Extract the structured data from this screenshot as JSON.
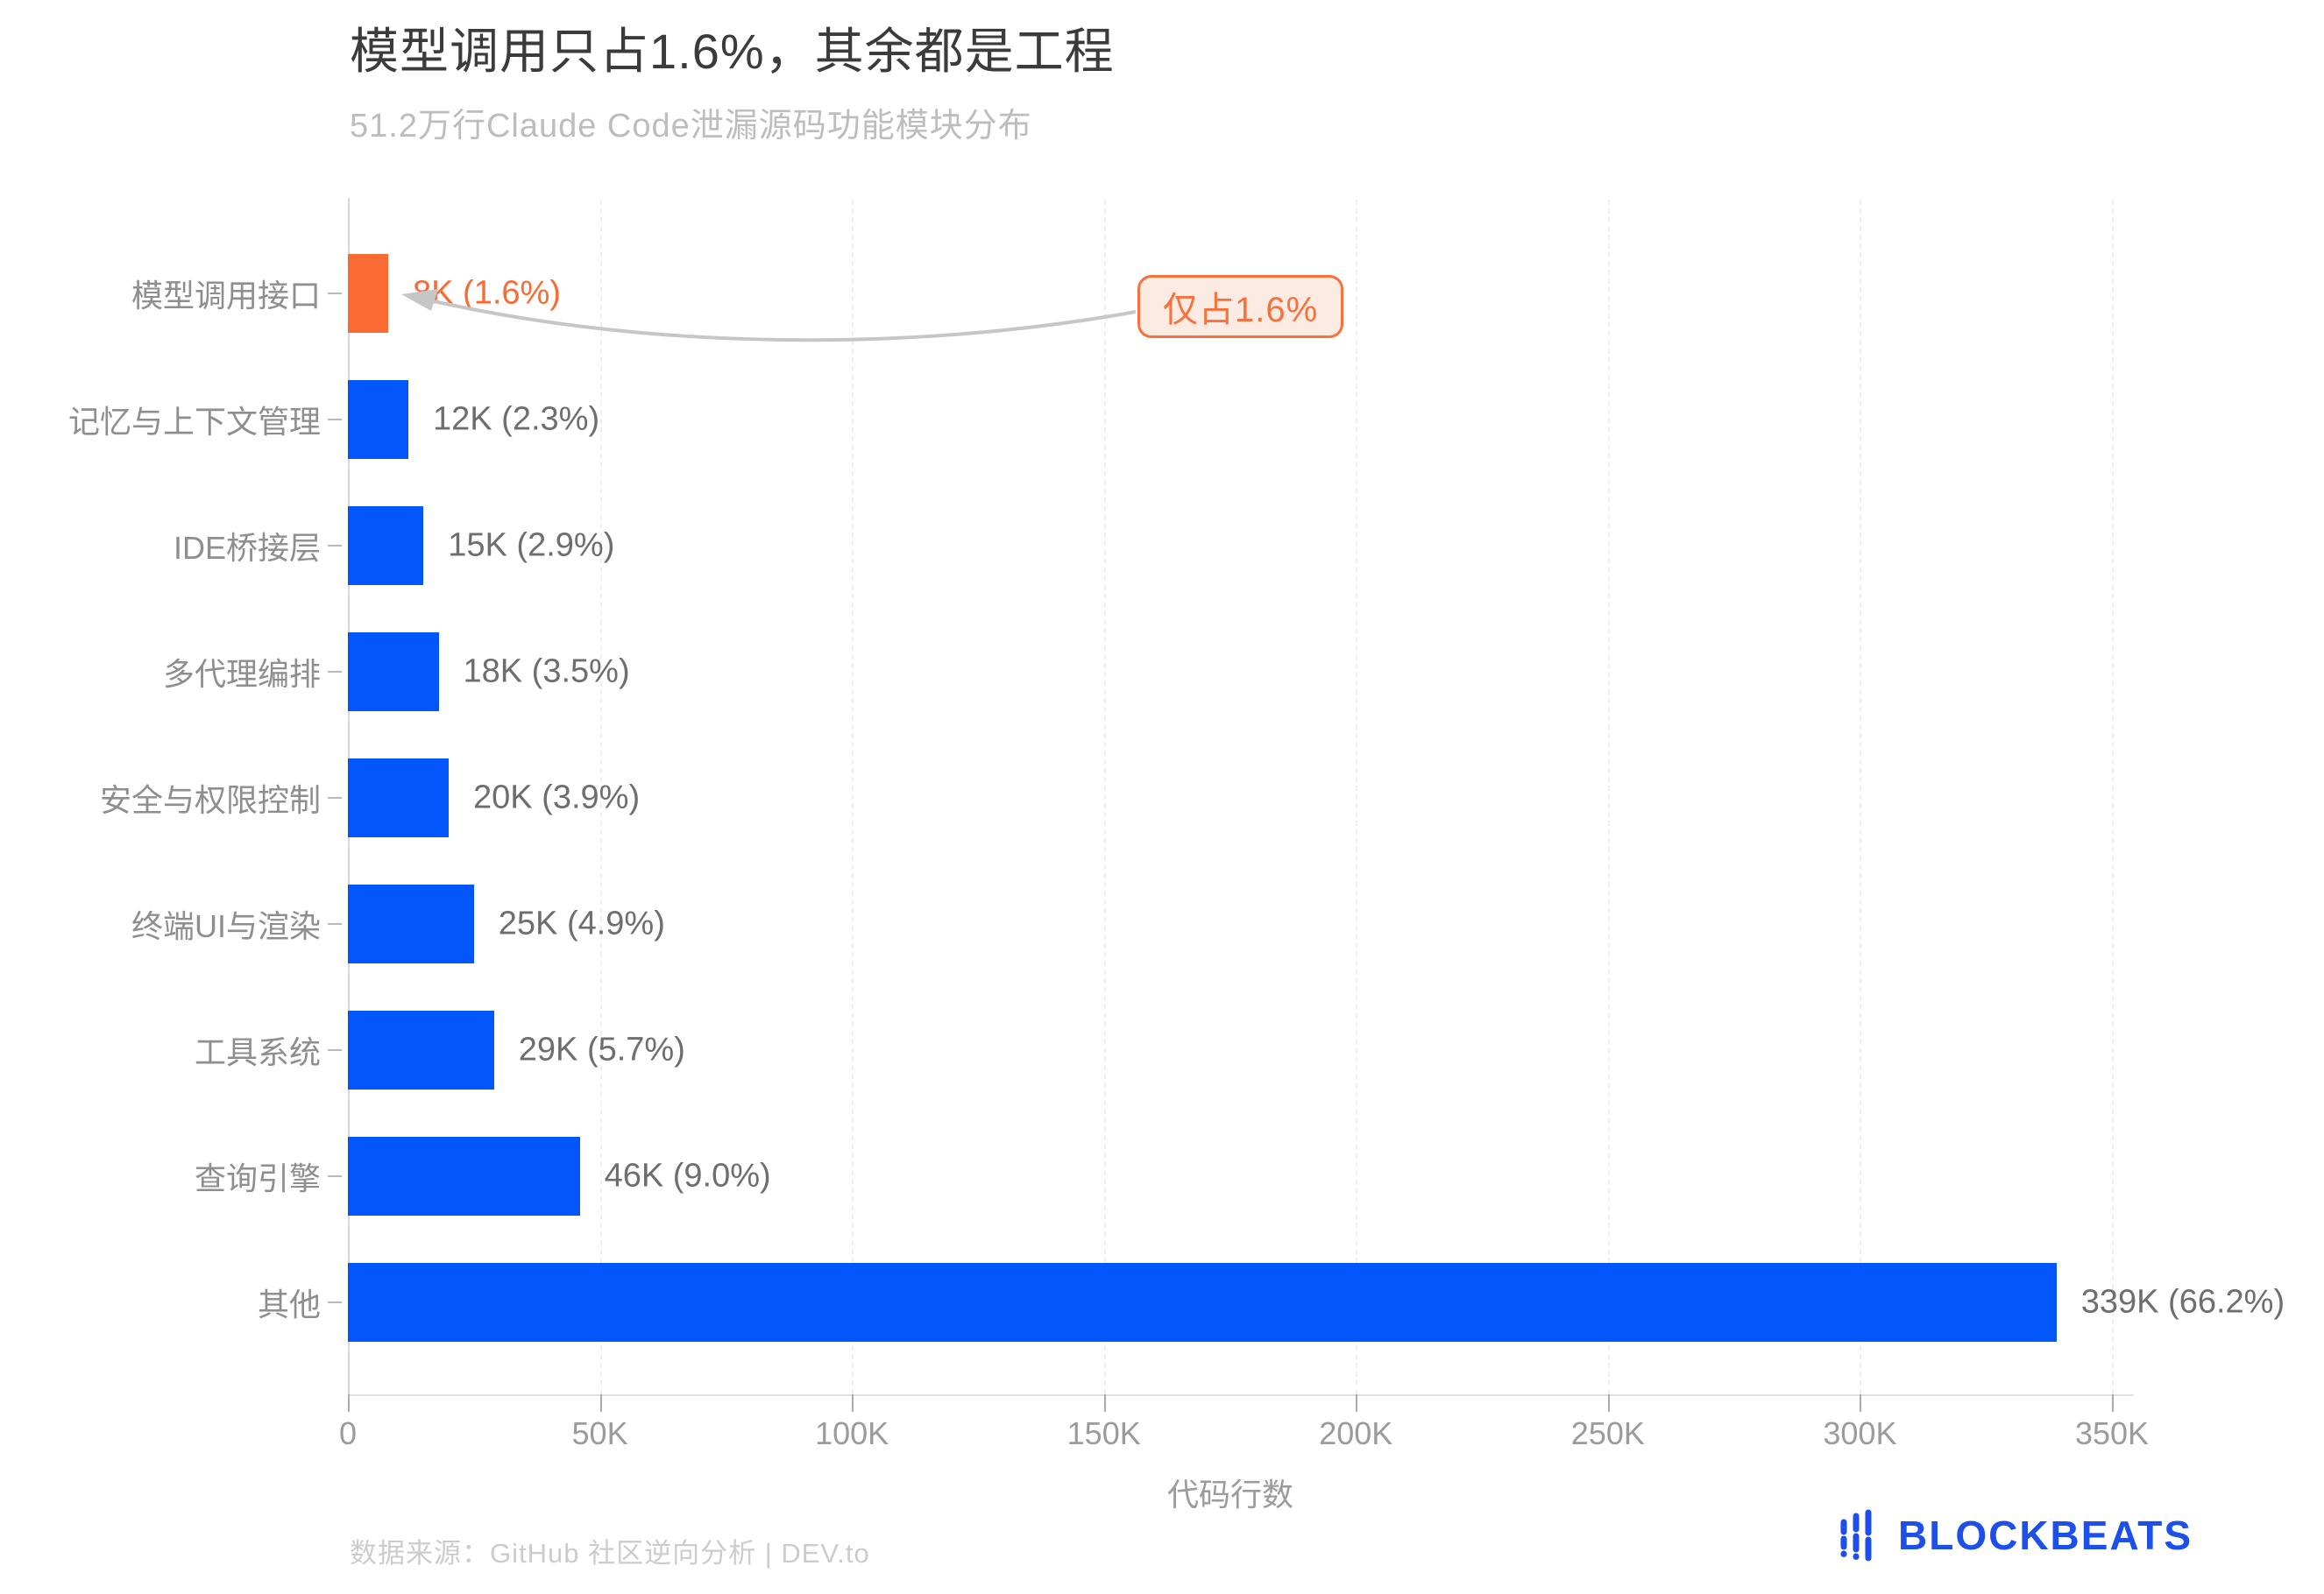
{
  "title": "模型调用只占1.6%，其余都是工程",
  "subtitle": "51.2万行Claude Code泄漏源码功能模块分布",
  "annotation": {
    "label": "仅占1.6%"
  },
  "footer": {
    "source": "数据来源：GitHub 社区逆向分析 | DEV.to",
    "logo_text": "BLOCKBEATS"
  },
  "colors": {
    "bar_blue": "#0356fa",
    "bar_orange": "#f96b32",
    "annotation_orange": "#f8703a",
    "annotation_bg": "#fcebe2",
    "arrow_gray": "#c6c6c6",
    "logo_blue": "#1d4fe9",
    "label_gray": "#6e6e6e",
    "axis_gray": "#9b9b9b"
  },
  "chart_data": {
    "type": "bar",
    "orientation": "horizontal",
    "title": "模型调用只占1.6%，其余都是工程",
    "subtitle": "51.2万行Claude Code泄漏源码功能模块分布",
    "xlabel": "代码行数",
    "ylabel": "",
    "xlim": [
      0,
      350000
    ],
    "grid": true,
    "categories": [
      "模型调用接口",
      "记忆与上下文管理",
      "IDE桥接层",
      "多代理编排",
      "安全与权限控制",
      "终端UI与渲染",
      "工具系统",
      "查询引擎",
      "其他"
    ],
    "values": [
      8000,
      12000,
      15000,
      18000,
      20000,
      25000,
      29000,
      46000,
      339000
    ],
    "data_labels": [
      "8K (1.6%)",
      "12K (2.3%)",
      "15K (2.9%)",
      "18K (3.5%)",
      "20K (3.9%)",
      "25K (4.9%)",
      "29K (5.7%)",
      "46K (9.0%)",
      "339K (66.2%)"
    ],
    "highlight_index": 0,
    "x_ticks": [
      {
        "label": "0",
        "value": 0
      },
      {
        "label": "50K",
        "value": 50000
      },
      {
        "label": "100K",
        "value": 100000
      },
      {
        "label": "150K",
        "value": 150000
      },
      {
        "label": "200K",
        "value": 200000
      },
      {
        "label": "250K",
        "value": 250000
      },
      {
        "label": "300K",
        "value": 300000
      },
      {
        "label": "350K",
        "value": 350000
      }
    ]
  }
}
